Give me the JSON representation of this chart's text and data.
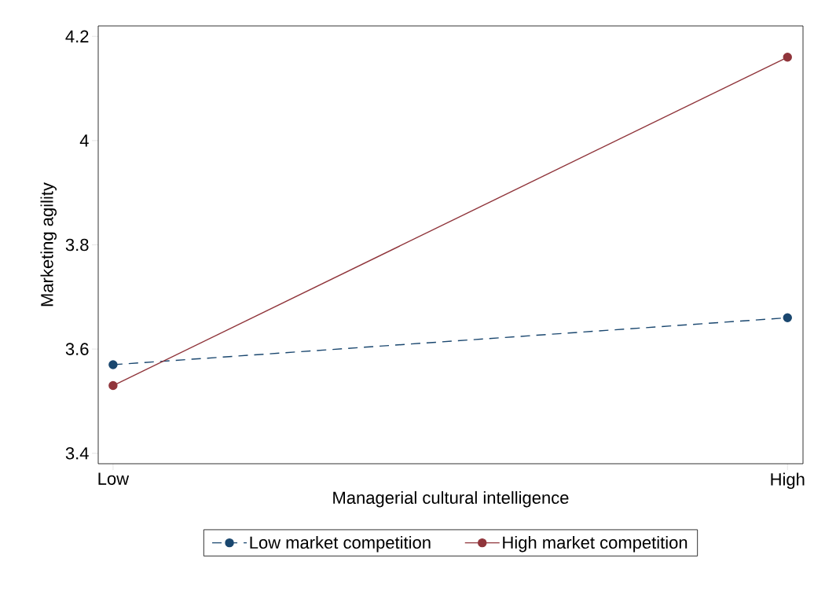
{
  "chart_data": {
    "type": "line",
    "xlabel": "Managerial cultural intelligence",
    "ylabel": "Marketing agility",
    "categories": [
      "Low",
      "High"
    ],
    "series": [
      {
        "name": "Low market competition",
        "color": "#1a476f",
        "values": [
          3.57,
          3.66
        ],
        "line_style": "dashed"
      },
      {
        "name": "High market competition",
        "color": "#90353b",
        "values": [
          3.53,
          4.16
        ],
        "line_style": "solid"
      }
    ],
    "ylim": [
      3.38,
      4.22
    ],
    "yticks": [
      3.4,
      3.6,
      3.8,
      4,
      4.2
    ],
    "marker": "circle",
    "legend": "bottom",
    "grid": false
  }
}
